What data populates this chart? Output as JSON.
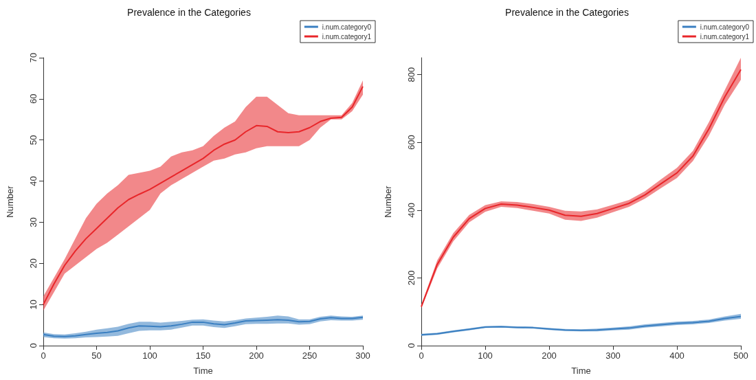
{
  "chart_data": [
    {
      "type": "line",
      "title": "Prevalence in the Categories",
      "xlabel": "Time",
      "ylabel": "Number",
      "xlim": [
        0,
        300
      ],
      "xticks": [
        0,
        50,
        100,
        150,
        200,
        250,
        300
      ],
      "ylim": [
        0,
        70
      ],
      "yticks": [
        0,
        10,
        20,
        30,
        40,
        50,
        60,
        70
      ],
      "grid": false,
      "legend": "top right",
      "marker": "none",
      "line_style": "solid",
      "x": [
        0,
        10,
        20,
        30,
        40,
        50,
        60,
        70,
        80,
        90,
        100,
        110,
        120,
        130,
        140,
        150,
        160,
        170,
        180,
        190,
        200,
        210,
        220,
        230,
        240,
        250,
        260,
        270,
        280,
        290,
        300
      ],
      "series": [
        {
          "name": "i.num.category0",
          "color": "#3a7fc1",
          "values": [
            2.7,
            2.3,
            2.2,
            2.4,
            2.7,
            3,
            3.2,
            3.6,
            4.3,
            4.8,
            4.7,
            4.6,
            4.8,
            5.2,
            5.7,
            5.7,
            5.3,
            5.1,
            5.5,
            6,
            6.1,
            6.2,
            6.3,
            6.2,
            5.8,
            5.9,
            6.5,
            6.8,
            6.6,
            6.6,
            6.9
          ],
          "lower": [
            2.1,
            1.8,
            1.7,
            1.8,
            2,
            2.1,
            2.2,
            2.4,
            3,
            3.6,
            3.7,
            3.7,
            3.9,
            4.4,
            4.9,
            4.9,
            4.5,
            4.3,
            4.7,
            5.2,
            5.3,
            5.3,
            5.4,
            5.4,
            5.1,
            5.2,
            5.9,
            6.2,
            6.1,
            6.1,
            6.3
          ],
          "upper": [
            3.2,
            2.8,
            2.7,
            3,
            3.4,
            3.9,
            4.2,
            4.6,
            5.3,
            5.8,
            5.8,
            5.6,
            5.8,
            6,
            6.3,
            6.4,
            6.1,
            5.9,
            6.2,
            6.6,
            6.8,
            7,
            7.3,
            7.1,
            6.4,
            6.4,
            7,
            7.3,
            7.1,
            7,
            7.3
          ]
        },
        {
          "name": "i.num.category1",
          "color": "#e8262a",
          "values": [
            10,
            15,
            19.5,
            23,
            26,
            28.5,
            31,
            33.5,
            35.5,
            36.8,
            38,
            39.5,
            41,
            42.5,
            44,
            45.5,
            47.5,
            49,
            50,
            52,
            53.5,
            53.3,
            52,
            51.8,
            52,
            53,
            54.5,
            55.3,
            55.5,
            58,
            63
          ],
          "lower": [
            8.5,
            13,
            17.5,
            19.5,
            21.5,
            23.5,
            25,
            27,
            29,
            31,
            33,
            37,
            39,
            40.5,
            42,
            43.5,
            45,
            45.5,
            46.5,
            47,
            48,
            48.5,
            48.5,
            48.5,
            48.5,
            50,
            53,
            55,
            55,
            57,
            61
          ],
          "upper": [
            12,
            16.5,
            21,
            26,
            31,
            34.5,
            37,
            39,
            41.5,
            42,
            42.5,
            43.5,
            46,
            47,
            47.5,
            48.5,
            51,
            53,
            54.5,
            58,
            60.5,
            60.5,
            58.5,
            56.5,
            56,
            56,
            56,
            56,
            56,
            59,
            64.5
          ]
        }
      ]
    },
    {
      "type": "line",
      "title": "Prevalence in the Categories",
      "xlabel": "Time",
      "ylabel": "Number",
      "xlim": [
        0,
        500
      ],
      "xticks": [
        0,
        100,
        200,
        300,
        400,
        500
      ],
      "ylim": [
        0,
        850
      ],
      "yticks": [
        0,
        200,
        400,
        600,
        800
      ],
      "grid": false,
      "legend": "top right",
      "marker": "none",
      "line_style": "solid",
      "x": [
        0,
        25,
        50,
        75,
        100,
        125,
        150,
        175,
        200,
        225,
        250,
        275,
        300,
        325,
        350,
        375,
        400,
        425,
        450,
        475,
        500
      ],
      "series": [
        {
          "name": "i.num.category0",
          "color": "#3a7fc1",
          "values": [
            32,
            35,
            42,
            48,
            55,
            56,
            54,
            53,
            49,
            46,
            45,
            46,
            49,
            52,
            58,
            62,
            66,
            68,
            72,
            80,
            86
          ],
          "lower": [
            29,
            32,
            39,
            45,
            52,
            53,
            51,
            50,
            46,
            43,
            42,
            42,
            45,
            47,
            53,
            57,
            61,
            63,
            67,
            74,
            79
          ],
          "upper": [
            35,
            38,
            45,
            51,
            58,
            59,
            57,
            56,
            52,
            49,
            48,
            50,
            53,
            57,
            63,
            67,
            71,
            73,
            77,
            86,
            94
          ]
        },
        {
          "name": "i.num.category1",
          "color": "#e8262a",
          "values": [
            115,
            240,
            320,
            375,
            405,
            418,
            415,
            408,
            400,
            385,
            382,
            390,
            405,
            420,
            445,
            478,
            510,
            560,
            640,
            735,
            815
          ],
          "lower": [
            110,
            228,
            308,
            364,
            395,
            410,
            406,
            398,
            390,
            372,
            368,
            378,
            394,
            410,
            434,
            465,
            495,
            545,
            620,
            712,
            785
          ],
          "upper": [
            120,
            252,
            332,
            386,
            415,
            426,
            424,
            418,
            410,
            398,
            396,
            402,
            416,
            430,
            456,
            491,
            525,
            575,
            660,
            755,
            850
          ]
        }
      ]
    }
  ]
}
